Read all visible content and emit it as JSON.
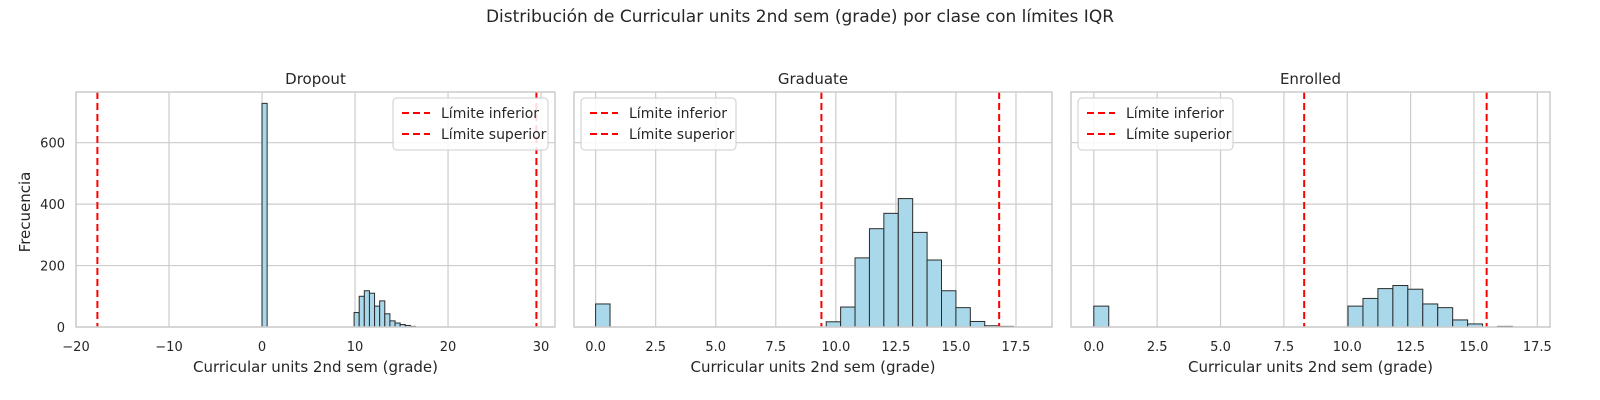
{
  "figure": {
    "suptitle": "Distribución de Curricular units 2nd sem (grade) por clase con límites IQR",
    "ylabel": "Frecuencia",
    "xlabel": "Curricular units 2nd sem (grade)"
  },
  "colors": {
    "bar_fill": "#a8d8ea",
    "bar_edge": "#2b2b2b",
    "limit_line": "#ff0000",
    "grid": "#cccccc",
    "frame": "#cccccc"
  },
  "chart_data": [
    {
      "type": "bar",
      "title": "Dropout",
      "xlabel": "Curricular units 2nd sem (grade)",
      "ylabel": "Frecuencia",
      "xlim": [
        -20,
        31.5
      ],
      "ylim": [
        0,
        765
      ],
      "xticks": [
        -20,
        -10,
        0,
        10,
        20,
        30
      ],
      "xtick_labels": [
        "−20",
        "−10",
        "0",
        "10",
        "20",
        "30"
      ],
      "yticks": [
        0,
        200,
        400,
        600
      ],
      "ytick_labels": [
        "0",
        "200",
        "400",
        "600"
      ],
      "grid": true,
      "legend_position": "top-right",
      "bin_edges": [
        0,
        0.55,
        1.1,
        1.65,
        2.2,
        2.75,
        3.3,
        3.85,
        4.4,
        4.95,
        5.5,
        6.05,
        6.6,
        7.15,
        7.7,
        8.25,
        8.8,
        9.35,
        9.9,
        10.45,
        11.0,
        11.55,
        12.1,
        12.65,
        13.2,
        13.75,
        14.3,
        14.85,
        15.4,
        15.95,
        16.5
      ],
      "counts": [
        728,
        0,
        0,
        0,
        0,
        0,
        0,
        0,
        0,
        0,
        0,
        0,
        0,
        0,
        0,
        0,
        0,
        0,
        47,
        100,
        118,
        110,
        68,
        85,
        43,
        20,
        13,
        8,
        5,
        2
      ],
      "limits": [
        {
          "name": "Límite inferior",
          "value": -17.7
        },
        {
          "name": "Límite superior",
          "value": 29.5
        }
      ]
    },
    {
      "type": "bar",
      "title": "Graduate",
      "xlabel": "Curricular units 2nd sem (grade)",
      "ylabel": "",
      "xlim": [
        -0.9,
        19.0
      ],
      "ylim": [
        0,
        765
      ],
      "xticks": [
        0,
        2.5,
        5,
        7.5,
        10,
        12.5,
        15,
        17.5
      ],
      "xtick_labels": [
        "0.0",
        "2.5",
        "5.0",
        "7.5",
        "10.0",
        "12.5",
        "15.0",
        "17.5"
      ],
      "yticks": [
        0,
        200,
        400,
        600
      ],
      "grid": true,
      "legend_position": "top-left",
      "bin_edges": [
        0,
        0.6,
        1.2,
        1.8,
        2.4,
        3.0,
        3.6,
        4.2,
        4.8,
        5.4,
        6.0,
        6.6,
        7.2,
        7.8,
        8.4,
        9.0,
        9.6,
        10.2,
        10.8,
        11.4,
        12.0,
        12.6,
        13.2,
        13.8,
        14.4,
        15.0,
        15.6,
        16.2,
        16.8,
        17.4,
        18.0
      ],
      "counts": [
        75,
        0,
        0,
        0,
        0,
        0,
        0,
        0,
        0,
        0,
        0,
        0,
        0,
        0,
        0,
        0,
        17,
        65,
        225,
        320,
        370,
        418,
        308,
        218,
        118,
        63,
        18,
        4,
        2,
        0
      ],
      "limits": [
        {
          "name": "Límite inferior",
          "value": 9.4
        },
        {
          "name": "Límite superior",
          "value": 16.8
        }
      ]
    },
    {
      "type": "bar",
      "title": "Enrolled",
      "xlabel": "Curricular units 2nd sem (grade)",
      "ylabel": "",
      "xlim": [
        -0.9,
        18.0
      ],
      "ylim": [
        0,
        765
      ],
      "xticks": [
        0,
        2.5,
        5,
        7.5,
        10,
        12.5,
        15,
        17.5
      ],
      "xtick_labels": [
        "0.0",
        "2.5",
        "5.0",
        "7.5",
        "10.0",
        "12.5",
        "15.0",
        "17.5"
      ],
      "yticks": [
        0,
        200,
        400,
        600
      ],
      "grid": true,
      "legend_position": "top-left",
      "bin_edges": [
        0,
        0.59,
        1.18,
        1.77,
        2.36,
        2.95,
        3.54,
        4.13,
        4.72,
        5.31,
        5.9,
        6.49,
        7.08,
        7.67,
        8.26,
        8.85,
        9.44,
        10.03,
        10.62,
        11.21,
        11.8,
        12.39,
        12.98,
        13.57,
        14.16,
        14.75,
        15.34,
        15.93,
        16.52
      ],
      "counts": [
        68,
        0,
        0,
        0,
        0,
        0,
        0,
        0,
        0,
        0,
        0,
        0,
        0,
        0,
        0,
        0,
        0,
        68,
        93,
        125,
        135,
        123,
        75,
        63,
        23,
        10,
        0,
        2
      ],
      "limits": [
        {
          "name": "Límite inferior",
          "value": 8.3
        },
        {
          "name": "Límite superior",
          "value": 15.5
        }
      ]
    }
  ]
}
